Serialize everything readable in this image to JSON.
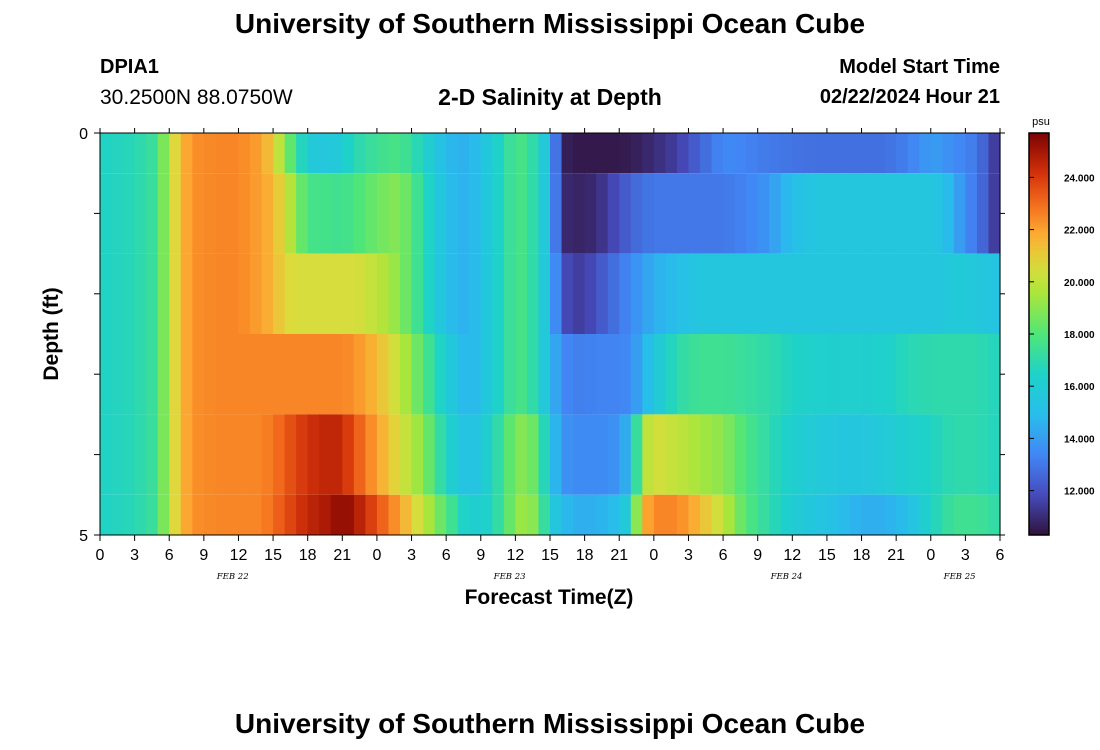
{
  "header": {
    "title": "University of Southern Mississippi Ocean Cube",
    "station": "DPIA1",
    "coordinates": "30.2500N  88.0750W",
    "plot_title": "2-D Salinity at Depth",
    "model_start_label": "Model Start Time",
    "model_start_value": "02/22/2024 Hour 21"
  },
  "footer": {
    "title": "University of Southern Mississippi Ocean Cube"
  },
  "chart_data": {
    "type": "heatmap",
    "title": "2-D Salinity at Depth",
    "xlabel": "Forecast Time(Z)",
    "ylabel": "Depth (ft)",
    "x_hours": [
      0,
      1,
      2,
      3,
      4,
      5,
      6,
      7,
      8,
      9,
      10,
      11,
      12,
      13,
      14,
      15,
      16,
      17,
      18,
      19,
      20,
      21,
      22,
      23,
      24,
      25,
      26,
      27,
      28,
      29,
      30,
      31,
      32,
      33,
      34,
      35,
      36,
      37,
      38,
      39,
      40,
      41,
      42,
      43,
      44,
      45,
      46,
      47,
      48,
      49,
      50,
      51,
      52,
      53,
      54,
      55,
      56,
      57,
      58,
      59,
      60,
      61,
      62,
      63,
      64,
      65,
      66,
      67,
      68,
      69,
      70,
      71,
      72,
      73,
      74,
      75,
      76,
      77,
      78
    ],
    "x_range": [
      0,
      78
    ],
    "x_tick_labels": [
      "0",
      "3",
      "6",
      "9",
      "12",
      "15",
      "18",
      "21",
      "0",
      "3",
      "6",
      "9",
      "12",
      "15",
      "18",
      "21",
      "0",
      "3",
      "6",
      "9",
      "12",
      "15",
      "18",
      "21",
      "0",
      "3",
      "6"
    ],
    "date_labels": [
      {
        "label": "FEB 22",
        "hour": 11.5
      },
      {
        "label": "FEB 23",
        "hour": 35.5
      },
      {
        "label": "FEB 24",
        "hour": 59.5
      },
      {
        "label": "FEB 25",
        "hour": 74.5
      }
    ],
    "y_range": [
      0,
      5
    ],
    "y_tick_labels": [
      "0",
      "5"
    ],
    "colorbar": {
      "unit": "psu",
      "min": 10.3,
      "max": 25.7,
      "ticks": [
        12,
        14,
        16,
        18,
        20,
        22,
        24
      ],
      "tick_labels": [
        "12.000",
        "14.000",
        "16.000",
        "18.000",
        "20.000",
        "22.000",
        "24.000"
      ]
    },
    "layers": [
      {
        "depth_top": 0.0,
        "depth_bottom": 0.5,
        "key_hours": [
          0,
          3,
          5,
          6,
          7,
          8,
          10,
          12,
          14,
          15,
          16,
          17,
          18,
          20,
          21,
          22,
          24,
          26,
          28,
          30,
          32,
          34,
          36,
          37,
          38,
          39,
          40,
          41,
          42,
          43,
          44,
          45,
          46,
          47,
          48,
          50,
          52,
          54,
          56,
          58,
          59,
          60,
          62,
          64,
          66,
          68,
          70,
          72,
          73,
          74,
          75,
          76,
          77,
          78
        ],
        "values": [
          16.5,
          16.8,
          17.5,
          20.0,
          21.5,
          22.3,
          22.5,
          22.5,
          22.0,
          21.0,
          19.0,
          17.5,
          15.8,
          15.5,
          16.0,
          16.8,
          17.5,
          17.8,
          16.5,
          14.8,
          14.5,
          16.0,
          17.8,
          17.6,
          16.5,
          15.0,
          10.8,
          10.5,
          10.5,
          10.5,
          10.5,
          10.5,
          10.6,
          10.8,
          11.0,
          11.5,
          12.5,
          13.5,
          13.3,
          13.0,
          13.0,
          12.9,
          12.8,
          12.8,
          12.8,
          12.8,
          13.2,
          14.0,
          13.8,
          13.5,
          13.3,
          13.0,
          12.0,
          11.0
        ]
      },
      {
        "depth_top": 0.5,
        "depth_bottom": 1.5,
        "key_hours": [
          0,
          3,
          5,
          6,
          7,
          8,
          10,
          12,
          14,
          15,
          16,
          17,
          18,
          20,
          21,
          22,
          24,
          26,
          28,
          30,
          32,
          34,
          36,
          37,
          38,
          39,
          40,
          41,
          42,
          43,
          44,
          45,
          46,
          47,
          48,
          50,
          52,
          54,
          56,
          58,
          59,
          60,
          62,
          64,
          66,
          68,
          70,
          72,
          73,
          74,
          75,
          76,
          77,
          78
        ],
        "values": [
          16.5,
          16.8,
          17.5,
          20.0,
          21.5,
          22.3,
          22.5,
          22.5,
          22.0,
          21.5,
          20.5,
          19.0,
          17.7,
          17.6,
          17.5,
          17.8,
          18.5,
          19.0,
          17.0,
          15.0,
          14.5,
          16.0,
          17.8,
          17.6,
          16.5,
          15.0,
          11.0,
          10.8,
          10.8,
          11.0,
          11.5,
          12.0,
          12.5,
          12.8,
          13.0,
          13.0,
          13.0,
          13.0,
          13.3,
          13.8,
          14.5,
          15.0,
          15.5,
          15.5,
          15.5,
          15.5,
          15.5,
          15.5,
          15.2,
          14.5,
          13.5,
          13.0,
          12.0,
          11.0
        ]
      },
      {
        "depth_top": 1.5,
        "depth_bottom": 2.5,
        "key_hours": [
          0,
          3,
          5,
          6,
          7,
          8,
          10,
          12,
          14,
          15,
          16,
          17,
          18,
          20,
          21,
          22,
          24,
          26,
          28,
          30,
          32,
          34,
          36,
          37,
          38,
          39,
          40,
          41,
          42,
          43,
          44,
          45,
          46,
          47,
          48,
          50,
          52,
          54,
          56,
          58,
          59,
          60,
          62,
          64,
          66,
          68,
          70,
          72,
          73,
          74,
          75,
          76,
          77,
          78
        ],
        "values": [
          16.5,
          16.8,
          17.5,
          20.0,
          21.5,
          22.3,
          22.5,
          22.5,
          22.0,
          21.5,
          20.8,
          20.5,
          20.5,
          20.5,
          20.5,
          20.5,
          20.0,
          19.0,
          17.0,
          15.0,
          14.5,
          16.0,
          17.8,
          17.6,
          16.5,
          15.0,
          12.0,
          11.5,
          11.5,
          12.0,
          12.5,
          13.0,
          13.5,
          14.0,
          14.5,
          15.0,
          15.5,
          15.5,
          15.5,
          15.5,
          15.5,
          15.5,
          15.5,
          15.5,
          15.5,
          15.5,
          15.5,
          15.5,
          15.6,
          15.8,
          15.8,
          15.6,
          15.5,
          15.3
        ]
      },
      {
        "depth_top": 2.5,
        "depth_bottom": 3.5,
        "key_hours": [
          0,
          3,
          5,
          6,
          7,
          8,
          10,
          12,
          14,
          15,
          16,
          17,
          18,
          20,
          21,
          22,
          24,
          26,
          28,
          30,
          32,
          34,
          36,
          37,
          38,
          39,
          40,
          41,
          42,
          43,
          44,
          45,
          46,
          47,
          48,
          50,
          52,
          54,
          56,
          58,
          59,
          60,
          62,
          64,
          66,
          68,
          70,
          72,
          73,
          74,
          75,
          76,
          77,
          78
        ],
        "values": [
          16.5,
          16.8,
          17.5,
          20.0,
          21.5,
          22.3,
          22.5,
          22.5,
          22.5,
          22.5,
          22.5,
          22.5,
          22.5,
          22.5,
          22.5,
          22.3,
          21.5,
          20.0,
          18.0,
          16.0,
          14.5,
          16.0,
          17.8,
          17.6,
          16.5,
          15.0,
          13.5,
          13.2,
          13.2,
          13.3,
          13.3,
          13.3,
          13.5,
          14.5,
          15.5,
          17.0,
          17.5,
          17.5,
          17.3,
          17.0,
          16.8,
          16.5,
          16.3,
          16.2,
          16.2,
          16.3,
          16.8,
          17.0,
          17.0,
          17.0,
          17.0,
          17.0,
          16.8,
          16.6
        ]
      },
      {
        "depth_top": 3.5,
        "depth_bottom": 4.5,
        "key_hours": [
          0,
          3,
          5,
          6,
          7,
          8,
          10,
          12,
          14,
          15,
          16,
          17,
          18,
          20,
          21,
          22,
          24,
          26,
          28,
          30,
          32,
          34,
          36,
          37,
          38,
          39,
          40,
          41,
          42,
          43,
          44,
          45,
          46,
          47,
          48,
          50,
          52,
          54,
          56,
          58,
          59,
          60,
          62,
          64,
          66,
          68,
          70,
          72,
          73,
          74,
          75,
          76,
          77,
          78
        ],
        "values": [
          16.5,
          16.8,
          17.5,
          20.0,
          21.5,
          22.3,
          22.5,
          22.5,
          22.5,
          22.8,
          23.3,
          23.8,
          24.2,
          24.6,
          24.4,
          23.5,
          22.0,
          20.5,
          19.0,
          16.5,
          15.0,
          16.5,
          18.8,
          19.0,
          18.0,
          15.5,
          13.8,
          13.5,
          13.5,
          13.5,
          13.5,
          13.8,
          15.0,
          19.5,
          20.5,
          20.0,
          19.5,
          19.0,
          17.8,
          17.0,
          16.5,
          16.2,
          15.8,
          15.5,
          15.5,
          15.8,
          16.2,
          16.5,
          16.8,
          17.0,
          17.0,
          17.0,
          16.8,
          16.6
        ]
      },
      {
        "depth_top": 4.5,
        "depth_bottom": 5.0,
        "key_hours": [
          0,
          3,
          5,
          6,
          7,
          8,
          10,
          12,
          14,
          15,
          16,
          17,
          18,
          20,
          21,
          22,
          24,
          26,
          28,
          30,
          32,
          34,
          36,
          37,
          38,
          39,
          40,
          41,
          42,
          43,
          44,
          45,
          46,
          47,
          48,
          50,
          52,
          54,
          56,
          58,
          59,
          60,
          62,
          64,
          66,
          68,
          70,
          72,
          73,
          74,
          75,
          76,
          77,
          78
        ],
        "values": [
          16.5,
          16.8,
          17.5,
          20.0,
          21.5,
          22.3,
          22.5,
          22.5,
          22.5,
          23.0,
          23.5,
          24.0,
          24.5,
          25.0,
          25.5,
          25.0,
          23.5,
          22.0,
          20.0,
          18.0,
          16.0,
          16.5,
          19.0,
          19.5,
          18.5,
          16.0,
          15.0,
          14.5,
          14.5,
          14.5,
          14.8,
          15.0,
          16.5,
          21.5,
          22.5,
          22.5,
          21.5,
          20.0,
          18.0,
          17.0,
          16.5,
          16.0,
          15.5,
          15.0,
          14.5,
          14.5,
          15.0,
          16.5,
          17.0,
          17.5,
          17.5,
          17.5,
          17.3,
          17.0
        ]
      }
    ]
  }
}
